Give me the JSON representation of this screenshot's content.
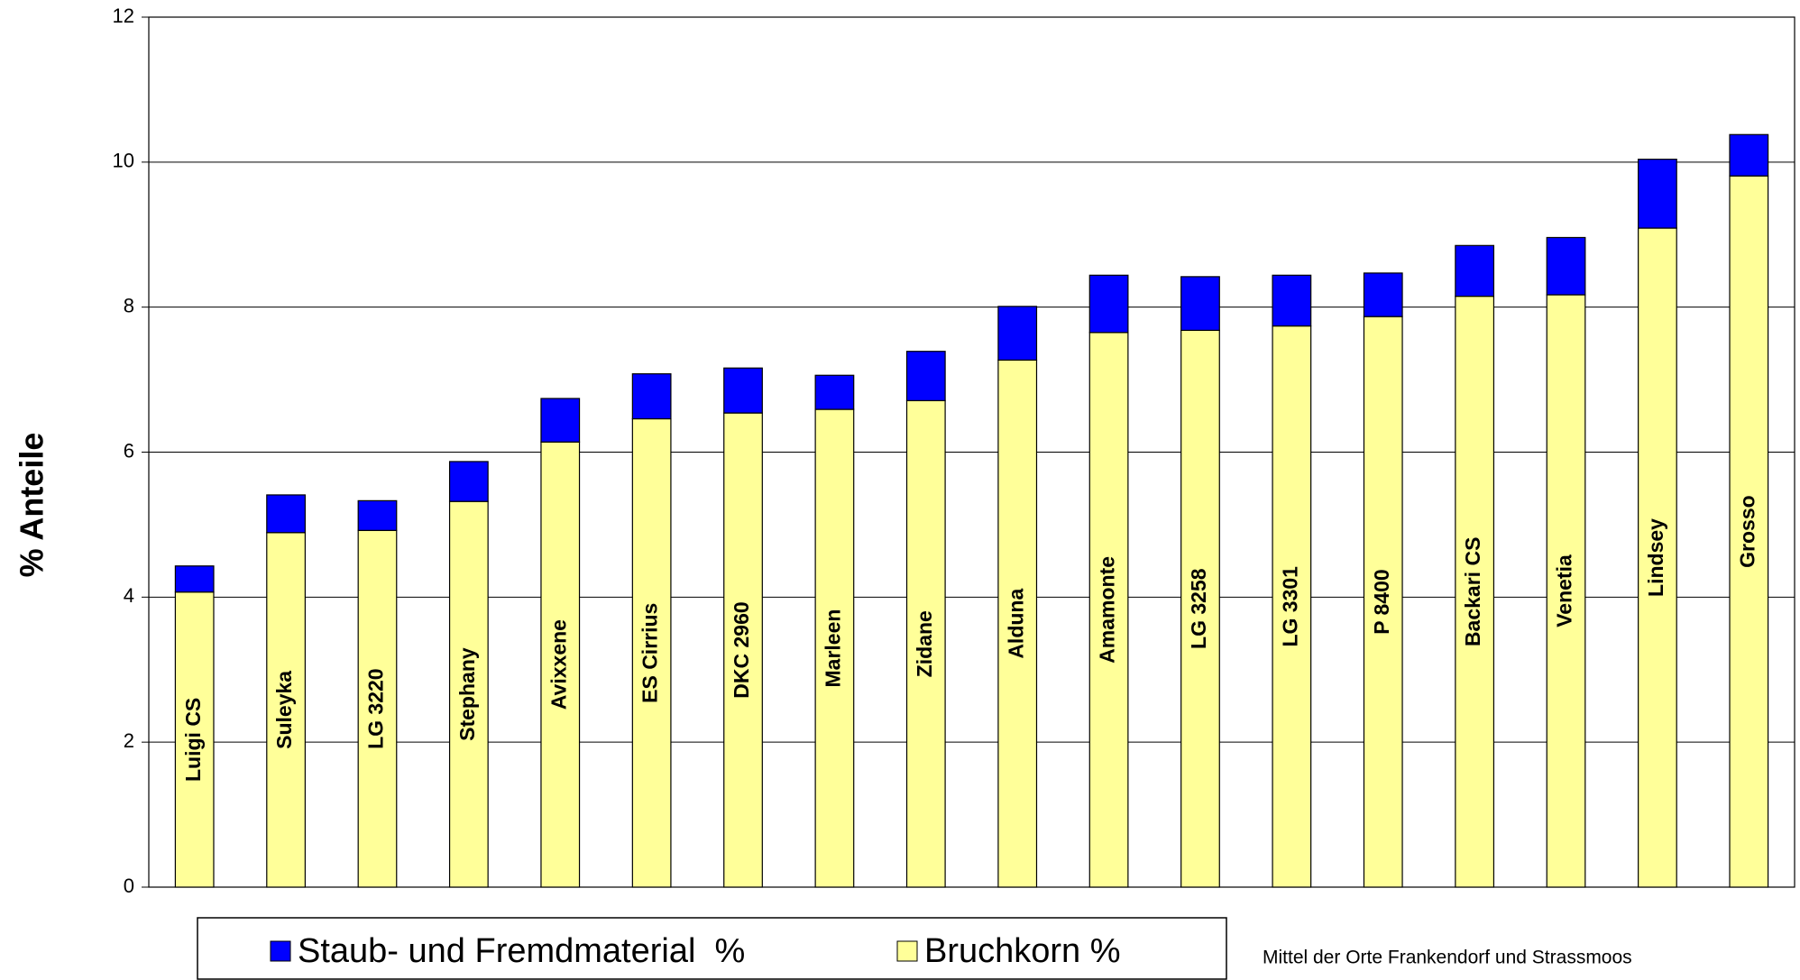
{
  "chart_data": {
    "type": "stacked_bar",
    "y_label": "% Anteile",
    "note": "Mittel der Orte Frankendorf und Strassmoos",
    "categories": [
      "Luigi CS",
      "Suleyka",
      "LG 3220",
      "Stephany",
      "Avixxene",
      "ES Cirrius",
      "DKC 2960",
      "Marleen",
      "Zidane",
      "Alduna",
      "Amamonte",
      "LG 3258",
      "LG 3301",
      "P 8400",
      "Backari CS",
      "Venetia",
      "Lindsey",
      "Grosso"
    ],
    "series": [
      {
        "name": "Staub- und Fremdmaterial  %",
        "color": "#0000ff",
        "values": [
          0.36,
          0.52,
          0.41,
          0.55,
          0.6,
          0.62,
          0.62,
          0.47,
          0.68,
          0.74,
          0.79,
          0.74,
          0.7,
          0.6,
          0.7,
          0.79,
          0.95,
          0.57
        ]
      },
      {
        "name": "Bruchkorn %",
        "color": "#ffff99",
        "values": [
          4.07,
          4.89,
          4.92,
          5.32,
          6.14,
          6.46,
          6.54,
          6.59,
          6.71,
          7.27,
          7.65,
          7.68,
          7.74,
          7.87,
          8.15,
          8.17,
          9.09,
          9.81
        ]
      }
    ],
    "ylim": [
      0,
      12
    ],
    "yticks": [
      0,
      2,
      4,
      6,
      8,
      10,
      12
    ],
    "grid": true
  }
}
